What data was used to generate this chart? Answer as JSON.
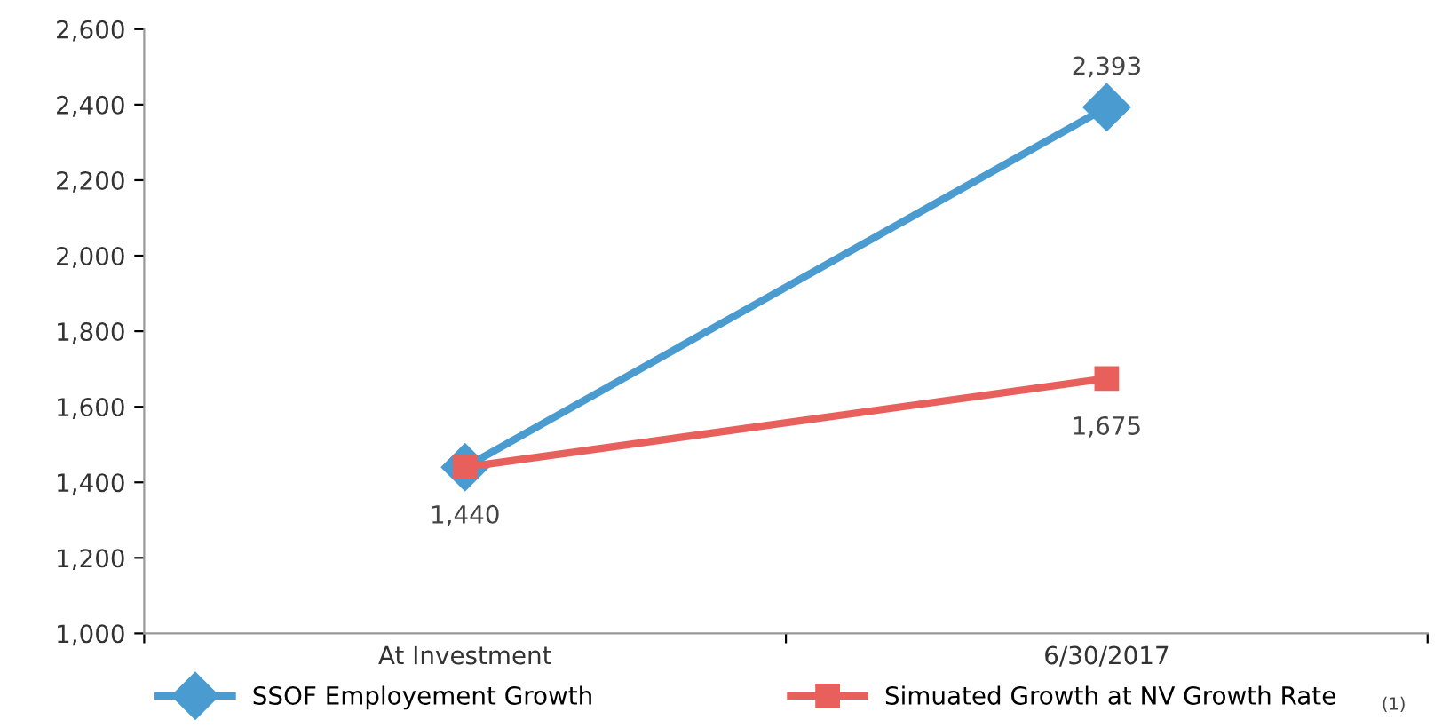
{
  "chart_data": {
    "type": "line",
    "categories": [
      "At Investment",
      "6/30/2017"
    ],
    "series": [
      {
        "name": "SSOF Employement Growth",
        "color": "#4a9bd0",
        "values": [
          1440,
          2393
        ],
        "marker": "diamond",
        "value_labels": [
          null,
          "2,393"
        ]
      },
      {
        "name": "Simuated Growth at NV Growth Rate",
        "color": "#e8605c",
        "values": [
          1440,
          1675
        ],
        "marker": "square",
        "value_labels": [
          "1,440",
          "1,675"
        ]
      }
    ],
    "ylim": [
      1000,
      2600
    ],
    "yticks": [
      {
        "value": 1000,
        "label": "1,000"
      },
      {
        "value": 1200,
        "label": "1,200"
      },
      {
        "value": 1400,
        "label": "1,400"
      },
      {
        "value": 1600,
        "label": "1,600"
      },
      {
        "value": 1800,
        "label": "1,800"
      },
      {
        "value": 2000,
        "label": "2,000"
      },
      {
        "value": 2200,
        "label": "2,200"
      },
      {
        "value": 2400,
        "label": "2,400"
      },
      {
        "value": 2600,
        "label": "2,600"
      }
    ],
    "legend": "bottom",
    "grid": false,
    "line_style": "solid",
    "annotations": [
      "(1)"
    ]
  }
}
